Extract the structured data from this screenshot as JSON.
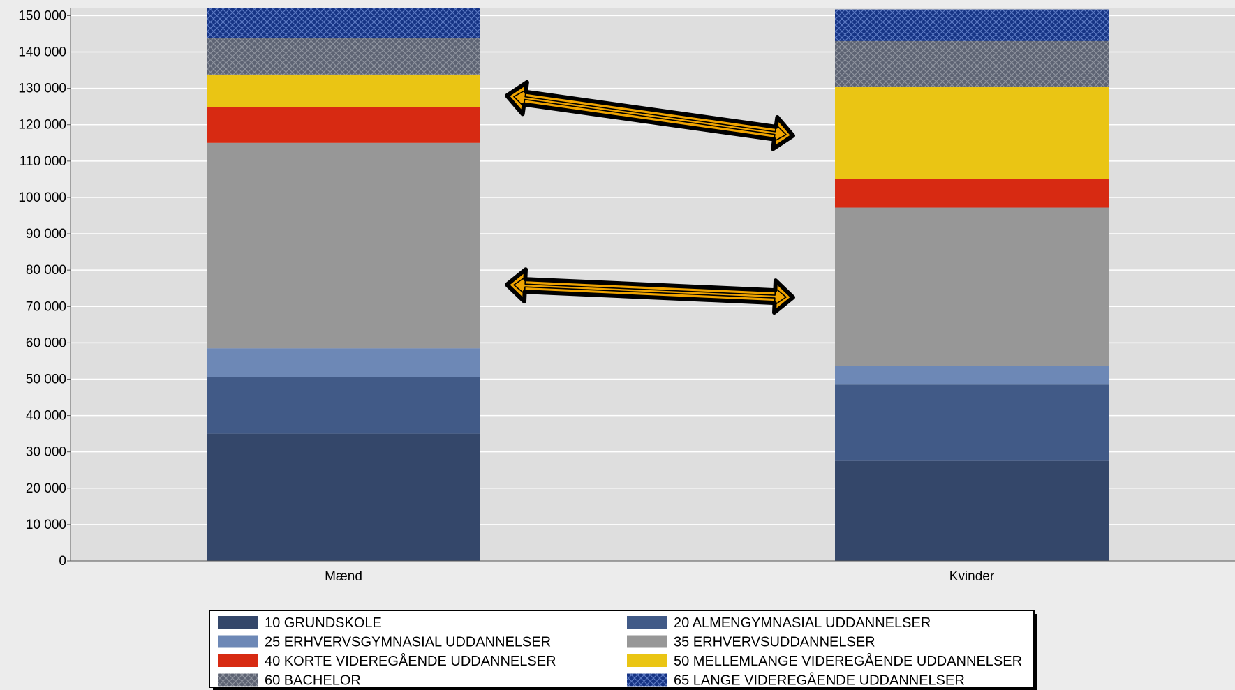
{
  "chart_data": {
    "type": "bar",
    "stacked": true,
    "categories": [
      "Mænd",
      "Kvinder"
    ],
    "ylim": [
      0,
      152000
    ],
    "yticks": [
      0,
      10000,
      20000,
      30000,
      40000,
      50000,
      60000,
      70000,
      80000,
      90000,
      100000,
      110000,
      120000,
      130000,
      140000,
      150000
    ],
    "ytick_labels": [
      "0",
      "10 000",
      "20 000",
      "30 000",
      "40 000",
      "50 000",
      "60 000",
      "70 000",
      "80 000",
      "90 000",
      "100 000",
      "110 000",
      "120 000",
      "130 000",
      "140 000",
      "150 000"
    ],
    "grid": true,
    "legend_position": "bottom",
    "series": [
      {
        "name": "10 GRUNDSKOLE",
        "values": [
          35000,
          27500
        ],
        "color": "#34476a"
      },
      {
        "name": "20 ALMENGYMNASIAL UDDANNELSER",
        "values": [
          15500,
          21000
        ],
        "color": "#415a87"
      },
      {
        "name": "25 ERHVERVSGYMNASIAL UDDANNELSER",
        "values": [
          8000,
          5200
        ],
        "color": "#6d88b6"
      },
      {
        "name": "35 ERHVERVSUDDANNELSER",
        "values": [
          56500,
          43500
        ],
        "color": "#979797"
      },
      {
        "name": "40 KORTE VIDEREGÅENDE UDDANNELSER",
        "values": [
          9800,
          7800
        ],
        "color": "#d72a12"
      },
      {
        "name": "50 MELLEMLANGE VIDEREGÅENDE UDDANNELSER",
        "values": [
          9000,
          25500
        ],
        "color": "#eac514"
      },
      {
        "name": "60 BACHELOR",
        "values": [
          10000,
          12500
        ],
        "color": "#5d6373",
        "pattern": "crosshatch"
      },
      {
        "name": "65 LANGE VIDEREGÅENDE UDDANNELSER",
        "values": [
          8200,
          8700
        ],
        "color": "#163485",
        "pattern": "crosshatch"
      }
    ],
    "annotations": [
      {
        "type": "double-arrow",
        "from": {
          "category": "Mænd",
          "y": 128000
        },
        "to": {
          "category": "Kvinder",
          "y": 117000
        },
        "color": "#f0a400"
      },
      {
        "type": "double-arrow",
        "from": {
          "category": "Mænd",
          "y": 76000
        },
        "to": {
          "category": "Kvinder",
          "y": 72500
        },
        "color": "#f0a400"
      }
    ]
  }
}
